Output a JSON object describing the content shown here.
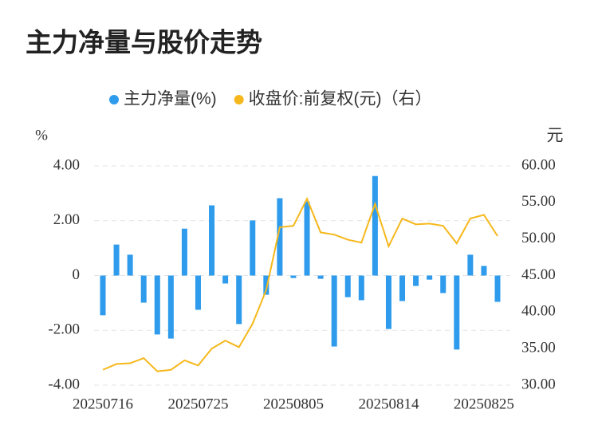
{
  "chart_data": {
    "type": "bar_line",
    "title": "主力净量与股价走势",
    "y_label": "%",
    "y2_label": "元",
    "categories": [
      "20250716",
      null,
      null,
      null,
      null,
      null,
      null,
      "20250725",
      null,
      null,
      null,
      null,
      null,
      null,
      "20250805",
      null,
      null,
      null,
      null,
      null,
      null,
      "20250814",
      null,
      null,
      null,
      null,
      null,
      null,
      "20250825",
      null
    ],
    "series": [
      {
        "name": "主力净量(%)",
        "color": "#2e9bec",
        "type": "bar",
        "values": [
          -1.45,
          1.13,
          0.76,
          -0.99,
          -2.15,
          -2.3,
          1.71,
          -1.25,
          2.56,
          -0.29,
          -1.77,
          2.01,
          -0.7,
          2.82,
          -0.09,
          2.7,
          -0.12,
          -2.59,
          -0.79,
          -0.9,
          3.63,
          -1.95,
          -0.93,
          -0.38,
          -0.15,
          -0.64,
          -2.7,
          0.76,
          0.35,
          -0.96
        ]
      },
      {
        "name": "收盘价:前复权(元)（右）",
        "color": "#f5b81c",
        "type": "line",
        "axis": "y2",
        "values": [
          32.1,
          32.9,
          33.0,
          33.7,
          31.9,
          32.1,
          33.4,
          32.7,
          35.0,
          36.1,
          35.2,
          38.4,
          43.0,
          51.6,
          51.8,
          55.5,
          50.9,
          50.6,
          49.9,
          49.5,
          54.8,
          49.0,
          52.8,
          52.0,
          52.1,
          51.8,
          49.4,
          52.8,
          53.3,
          50.4
        ]
      }
    ],
    "ylim": [
      -4,
      4
    ],
    "yticks": [
      {
        "value": -4,
        "label": "-4.00"
      },
      {
        "value": -2,
        "label": "-2.00"
      },
      0,
      {
        "value": 2,
        "label": "2.00"
      },
      {
        "value": 4,
        "label": "4.00"
      }
    ],
    "y2lim": [
      30,
      60
    ],
    "y2ticks": [
      {
        "value": 30,
        "label": "30.00"
      },
      {
        "value": 35,
        "label": "35.00"
      },
      {
        "value": 40,
        "label": "40.00"
      },
      {
        "value": 45,
        "label": "45.00"
      },
      {
        "value": 50,
        "label": "50.00"
      },
      {
        "value": 55,
        "label": "55.00"
      },
      {
        "value": 60,
        "label": "60.00"
      }
    ],
    "grid": true
  }
}
